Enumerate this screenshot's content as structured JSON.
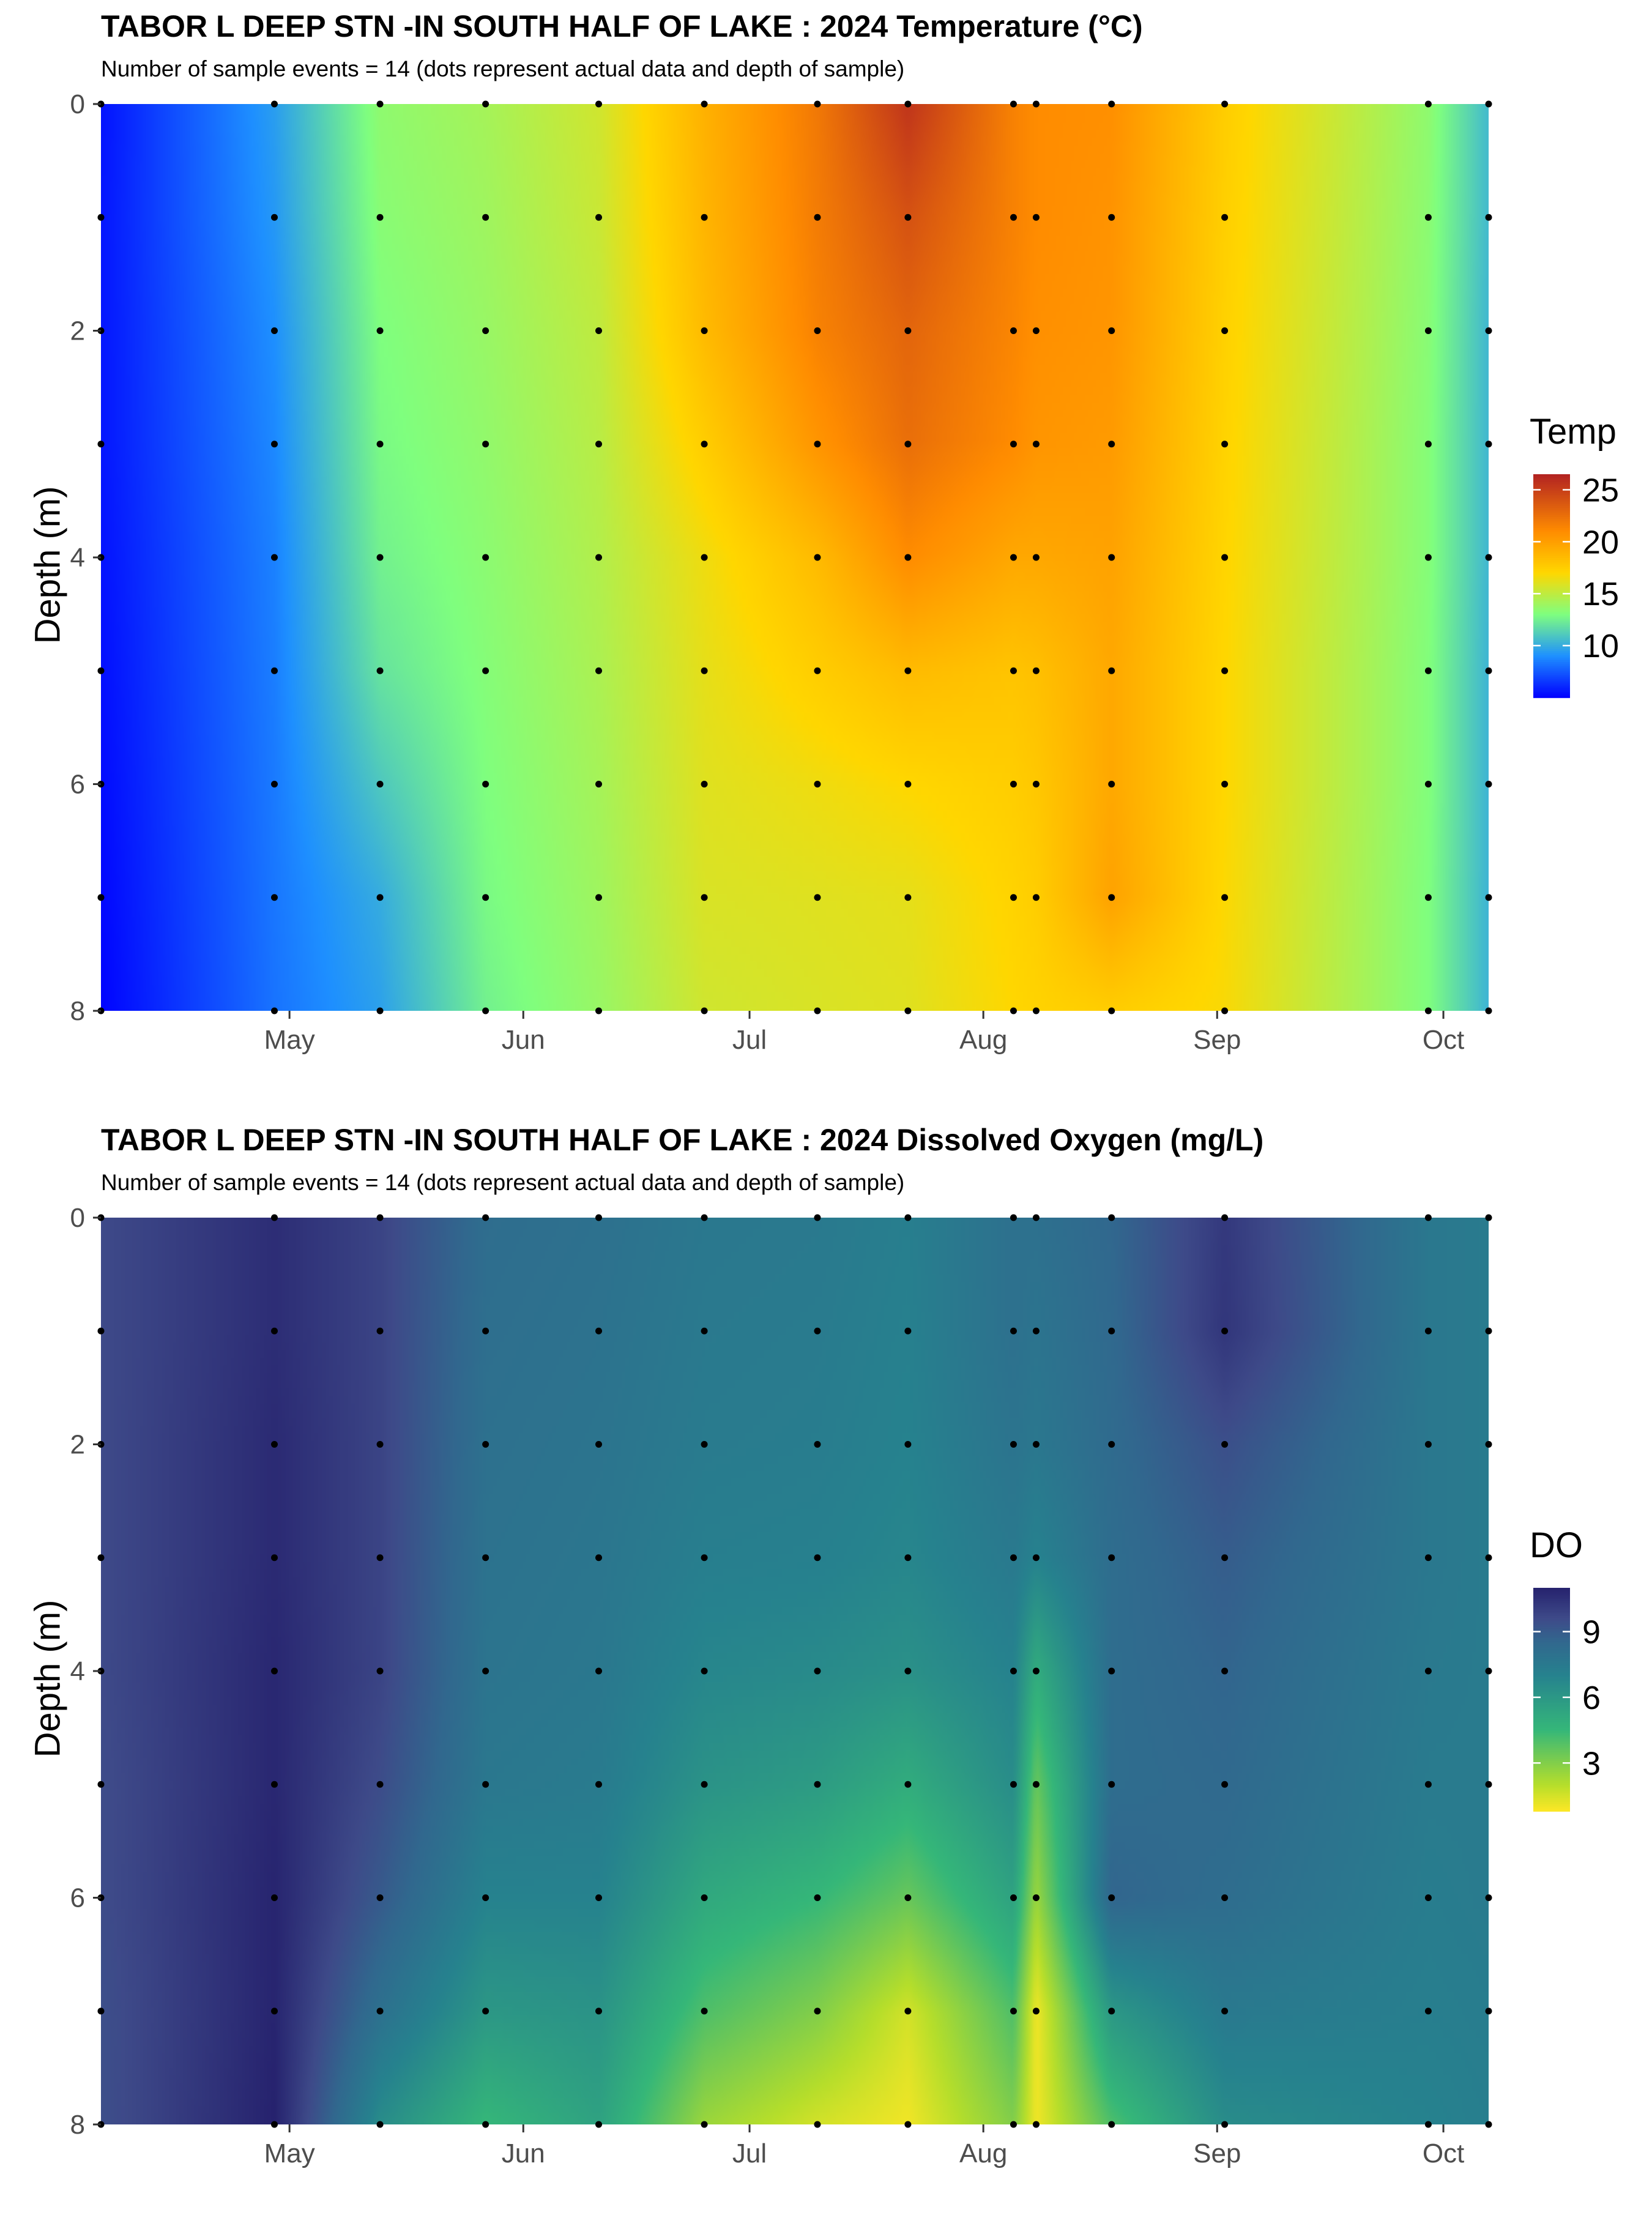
{
  "chart_data": [
    {
      "type": "heatmap",
      "title": "TABOR L DEEP STN -IN SOUTH HALF OF LAKE :  2024 Temperature (°C)",
      "subtitle": "Number of sample events = 14 (dots represent actual data and depth of sample)",
      "ylabel": "Depth (m)",
      "xlabel": "",
      "legend_title": "Temp",
      "legend_placement": "right",
      "x_ticks": [
        "May",
        "Jun",
        "Jul",
        "Aug",
        "Sep",
        "Oct"
      ],
      "y_ticks": [
        "0",
        "2",
        "4",
        "6",
        "8"
      ],
      "ylim": [
        8,
        0
      ],
      "y_reversed": true,
      "legend_ticks": [
        "25",
        "20",
        "15",
        "10"
      ],
      "legend_tick_values": [
        25,
        20,
        15,
        10
      ],
      "value_range": [
        5,
        26.5
      ],
      "colorscale": [
        "#0000ff",
        "#1e90ff",
        "#7fff7f",
        "#ffd700",
        "#ff8c00",
        "#b22222"
      ],
      "colorscale_stops": [
        5,
        9,
        13,
        17,
        21,
        26.5
      ],
      "sample_dates": [
        "2024-04-06",
        "2024-04-29",
        "2024-05-13",
        "2024-05-27",
        "2024-06-11",
        "2024-06-25",
        "2024-07-10",
        "2024-07-22",
        "2024-08-05",
        "2024-08-08",
        "2024-08-18",
        "2024-09-02",
        "2024-09-29",
        "2024-10-07"
      ],
      "depths": [
        0,
        1,
        2,
        3,
        4,
        5,
        6,
        7,
        8
      ],
      "values": [
        [
          5.5,
          5.6,
          5.6,
          5.6,
          5.5,
          5.4,
          5.3,
          5.2,
          5.1
        ],
        [
          9.5,
          9.3,
          9.0,
          8.8,
          8.6,
          8.5,
          8.4,
          8.3,
          8.2
        ],
        [
          13.5,
          13.3,
          13.0,
          12.8,
          12.5,
          12.0,
          11.0,
          10.0,
          9.6
        ],
        [
          14.2,
          14.0,
          13.8,
          13.6,
          13.4,
          13.2,
          13.0,
          12.8,
          12.5
        ],
        [
          15.5,
          15.3,
          15.0,
          14.8,
          14.6,
          14.4,
          14.2,
          14.0,
          13.8
        ],
        [
          19.0,
          18.8,
          18.5,
          17.5,
          16.5,
          16.2,
          16.0,
          15.8,
          15.5
        ],
        [
          22.0,
          21.8,
          21.5,
          20.5,
          18.5,
          17.5,
          16.5,
          16.0,
          15.8
        ],
        [
          25.5,
          24.0,
          23.0,
          22.5,
          21.0,
          18.5,
          17.0,
          16.2,
          16.0
        ],
        [
          21.5,
          21.5,
          21.3,
          21.0,
          19.5,
          18.0,
          17.5,
          17.2,
          17.0
        ],
        [
          21.0,
          21.0,
          20.8,
          20.5,
          19.5,
          18.2,
          17.8,
          17.5,
          17.2
        ],
        [
          20.8,
          20.6,
          20.5,
          20.2,
          19.8,
          19.5,
          19.5,
          19.8,
          17.5
        ],
        [
          17.5,
          17.4,
          17.3,
          17.2,
          17.1,
          17.0,
          17.0,
          16.9,
          16.8
        ],
        [
          13.5,
          13.4,
          13.3,
          13.2,
          13.2,
          13.1,
          13.1,
          13.0,
          13.0
        ],
        [
          10.5,
          10.5,
          10.4,
          10.4,
          10.4,
          10.3,
          10.3,
          10.3,
          10.3
        ]
      ]
    },
    {
      "type": "heatmap",
      "title": "TABOR L DEEP STN -IN SOUTH HALF OF LAKE :  2024 Dissolved Oxygen (mg/L)",
      "subtitle": "Number of sample events = 14 (dots represent actual data and depth of sample)",
      "ylabel": "Depth (m)",
      "xlabel": "",
      "legend_title": "DO",
      "legend_placement": "right",
      "x_ticks": [
        "May",
        "Jun",
        "Jul",
        "Aug",
        "Sep",
        "Oct"
      ],
      "y_ticks": [
        "0",
        "2",
        "4",
        "6",
        "8"
      ],
      "ylim": [
        8,
        0
      ],
      "y_reversed": true,
      "legend_ticks": [
        "9",
        "6",
        "3"
      ],
      "legend_tick_values": [
        9,
        6,
        3
      ],
      "value_range": [
        0.8,
        11
      ],
      "colorscale": [
        "#fde725",
        "#b5de2b",
        "#35b779",
        "#26828e",
        "#31688e",
        "#3e4a89",
        "#26226e"
      ],
      "colorscale_stops": [
        0.8,
        2.0,
        4.5,
        7.0,
        8.5,
        9.6,
        11
      ],
      "sample_dates": [
        "2024-04-06",
        "2024-04-29",
        "2024-05-13",
        "2024-05-27",
        "2024-06-11",
        "2024-06-25",
        "2024-07-10",
        "2024-07-22",
        "2024-08-05",
        "2024-08-08",
        "2024-08-18",
        "2024-09-02",
        "2024-09-29",
        "2024-10-07"
      ],
      "depths": [
        0,
        1,
        2,
        3,
        4,
        5,
        6,
        7,
        8
      ],
      "values": [
        [
          9.6,
          9.6,
          9.6,
          9.6,
          9.6,
          9.5,
          9.5,
          9.4,
          9.4
        ],
        [
          10.6,
          10.6,
          10.7,
          10.7,
          10.8,
          10.8,
          10.9,
          10.9,
          11.0
        ],
        [
          9.8,
          9.8,
          9.8,
          9.8,
          9.8,
          9.5,
          9.0,
          8.0,
          6.5
        ],
        [
          8.2,
          8.1,
          8.0,
          7.9,
          7.8,
          7.6,
          7.0,
          6.0,
          4.5
        ],
        [
          8.0,
          7.9,
          7.8,
          7.7,
          7.6,
          7.4,
          7.0,
          6.2,
          5.5
        ],
        [
          7.6,
          7.5,
          7.4,
          7.2,
          6.8,
          6.2,
          5.2,
          4.0,
          2.5
        ],
        [
          7.5,
          7.4,
          7.3,
          7.1,
          6.6,
          5.8,
          4.5,
          3.0,
          1.5
        ],
        [
          7.2,
          7.1,
          7.0,
          6.8,
          6.3,
          5.0,
          3.5,
          1.5,
          1.0
        ],
        [
          8.0,
          8.0,
          7.8,
          7.5,
          7.0,
          6.5,
          5.5,
          4.0,
          3.0
        ],
        [
          8.0,
          7.8,
          7.6,
          7.0,
          5.0,
          3.5,
          2.5,
          1.0,
          1.0
        ],
        [
          8.5,
          8.4,
          8.3,
          8.2,
          8.2,
          8.2,
          8.6,
          6.0,
          4.0
        ],
        [
          10.2,
          10.3,
          9.4,
          8.9,
          8.6,
          8.4,
          8.2,
          7.5,
          6.5
        ],
        [
          7.6,
          7.6,
          7.6,
          7.6,
          7.5,
          7.4,
          7.3,
          7.2,
          7.0
        ],
        [
          7.4,
          7.4,
          7.4,
          7.4,
          7.4,
          7.4,
          7.4,
          7.3,
          7.2
        ]
      ]
    }
  ]
}
